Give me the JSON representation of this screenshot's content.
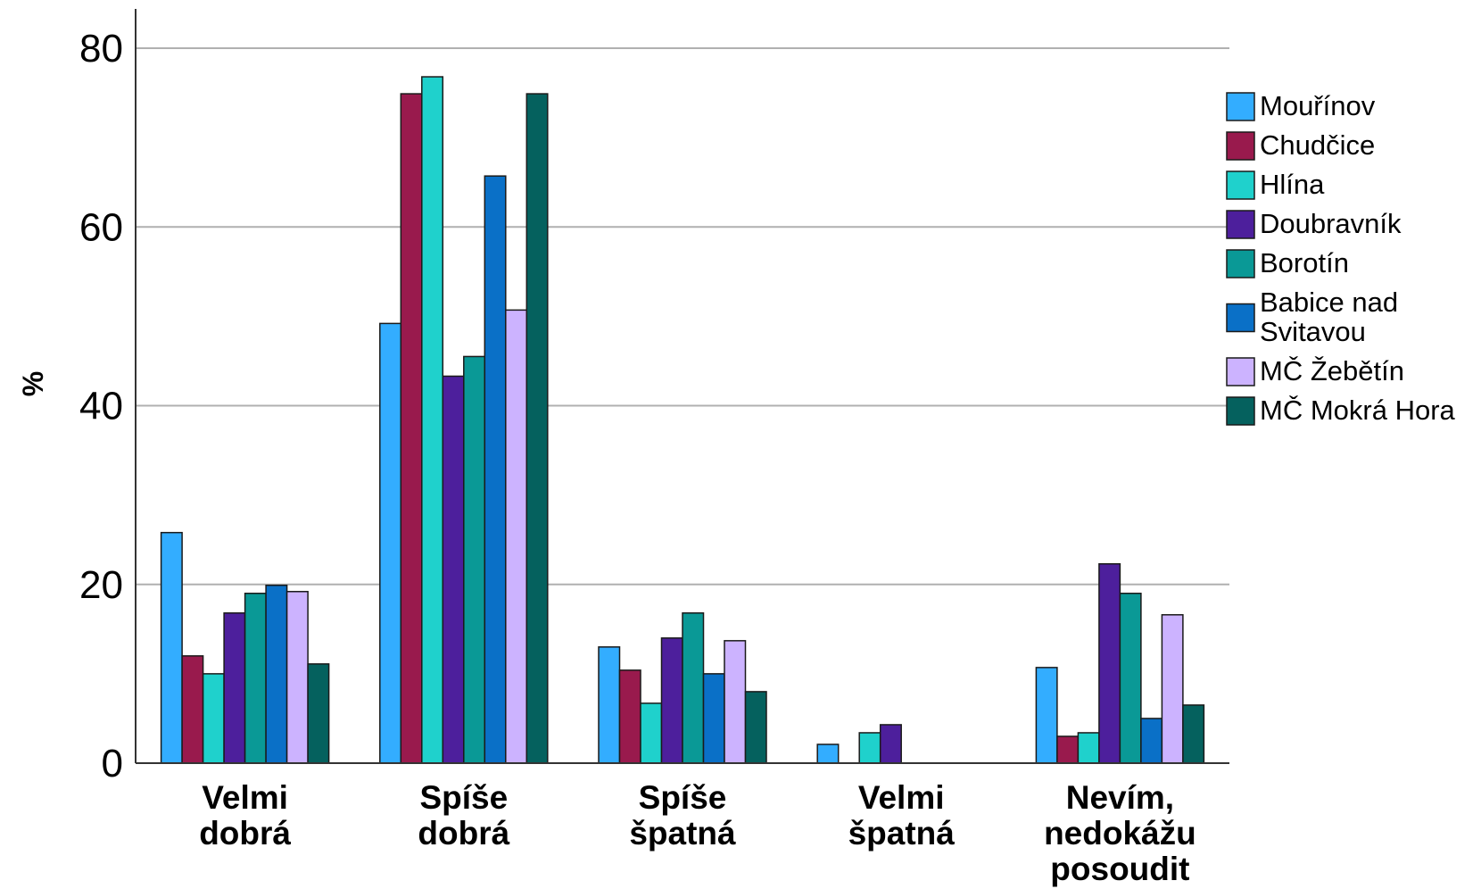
{
  "chart_data": {
    "type": "bar",
    "ylabel": "%",
    "xlabel": "",
    "ylim": [
      0,
      80
    ],
    "yticks": [
      0,
      20,
      40,
      60,
      80
    ],
    "grid": true,
    "legend_position": "right",
    "categories": [
      [
        "Velmi",
        "dobrá"
      ],
      [
        "Spíše",
        "dobrá"
      ],
      [
        "Spíše",
        "špatná"
      ],
      [
        "Velmi",
        "špatná"
      ],
      [
        "Nevím,",
        "nedokážu",
        "posoudit"
      ]
    ],
    "series": [
      {
        "name": "Mouřínov",
        "legend_lines": [
          "Mouřínov"
        ],
        "color": "#33adff",
        "values": [
          25.8,
          49.2,
          13.0,
          2.1,
          10.7
        ]
      },
      {
        "name": "Chudčice",
        "legend_lines": [
          "Chudčice"
        ],
        "color": "#991a4d",
        "values": [
          12.0,
          74.9,
          10.4,
          0,
          3.0
        ]
      },
      {
        "name": "Hlína",
        "legend_lines": [
          "Hlína"
        ],
        "color": "#1fd1cc",
        "values": [
          10.0,
          76.8,
          6.7,
          3.4,
          3.4
        ]
      },
      {
        "name": "Doubravník",
        "legend_lines": [
          "Doubravník"
        ],
        "color": "#4d1f9c",
        "values": [
          16.8,
          43.3,
          14.0,
          4.3,
          22.3
        ]
      },
      {
        "name": "Borotín",
        "legend_lines": [
          "Borotín"
        ],
        "color": "#0a9996",
        "values": [
          19.0,
          45.5,
          16.8,
          0,
          19.0
        ]
      },
      {
        "name": "Babice nad Svitavou",
        "legend_lines": [
          "Babice nad",
          "Svitavou"
        ],
        "color": "#0a70c7",
        "values": [
          19.9,
          65.7,
          10.0,
          0,
          5.0
        ]
      },
      {
        "name": "MČ Žebětín",
        "legend_lines": [
          "MČ Žebětín"
        ],
        "color": "#ccb3ff",
        "values": [
          19.2,
          50.7,
          13.7,
          0,
          16.6
        ]
      },
      {
        "name": "MČ Mokrá Hora",
        "legend_lines": [
          "MČ Mokrá Hora"
        ],
        "color": "#05615e",
        "values": [
          11.1,
          74.9,
          8.0,
          0,
          6.5
        ]
      }
    ]
  }
}
